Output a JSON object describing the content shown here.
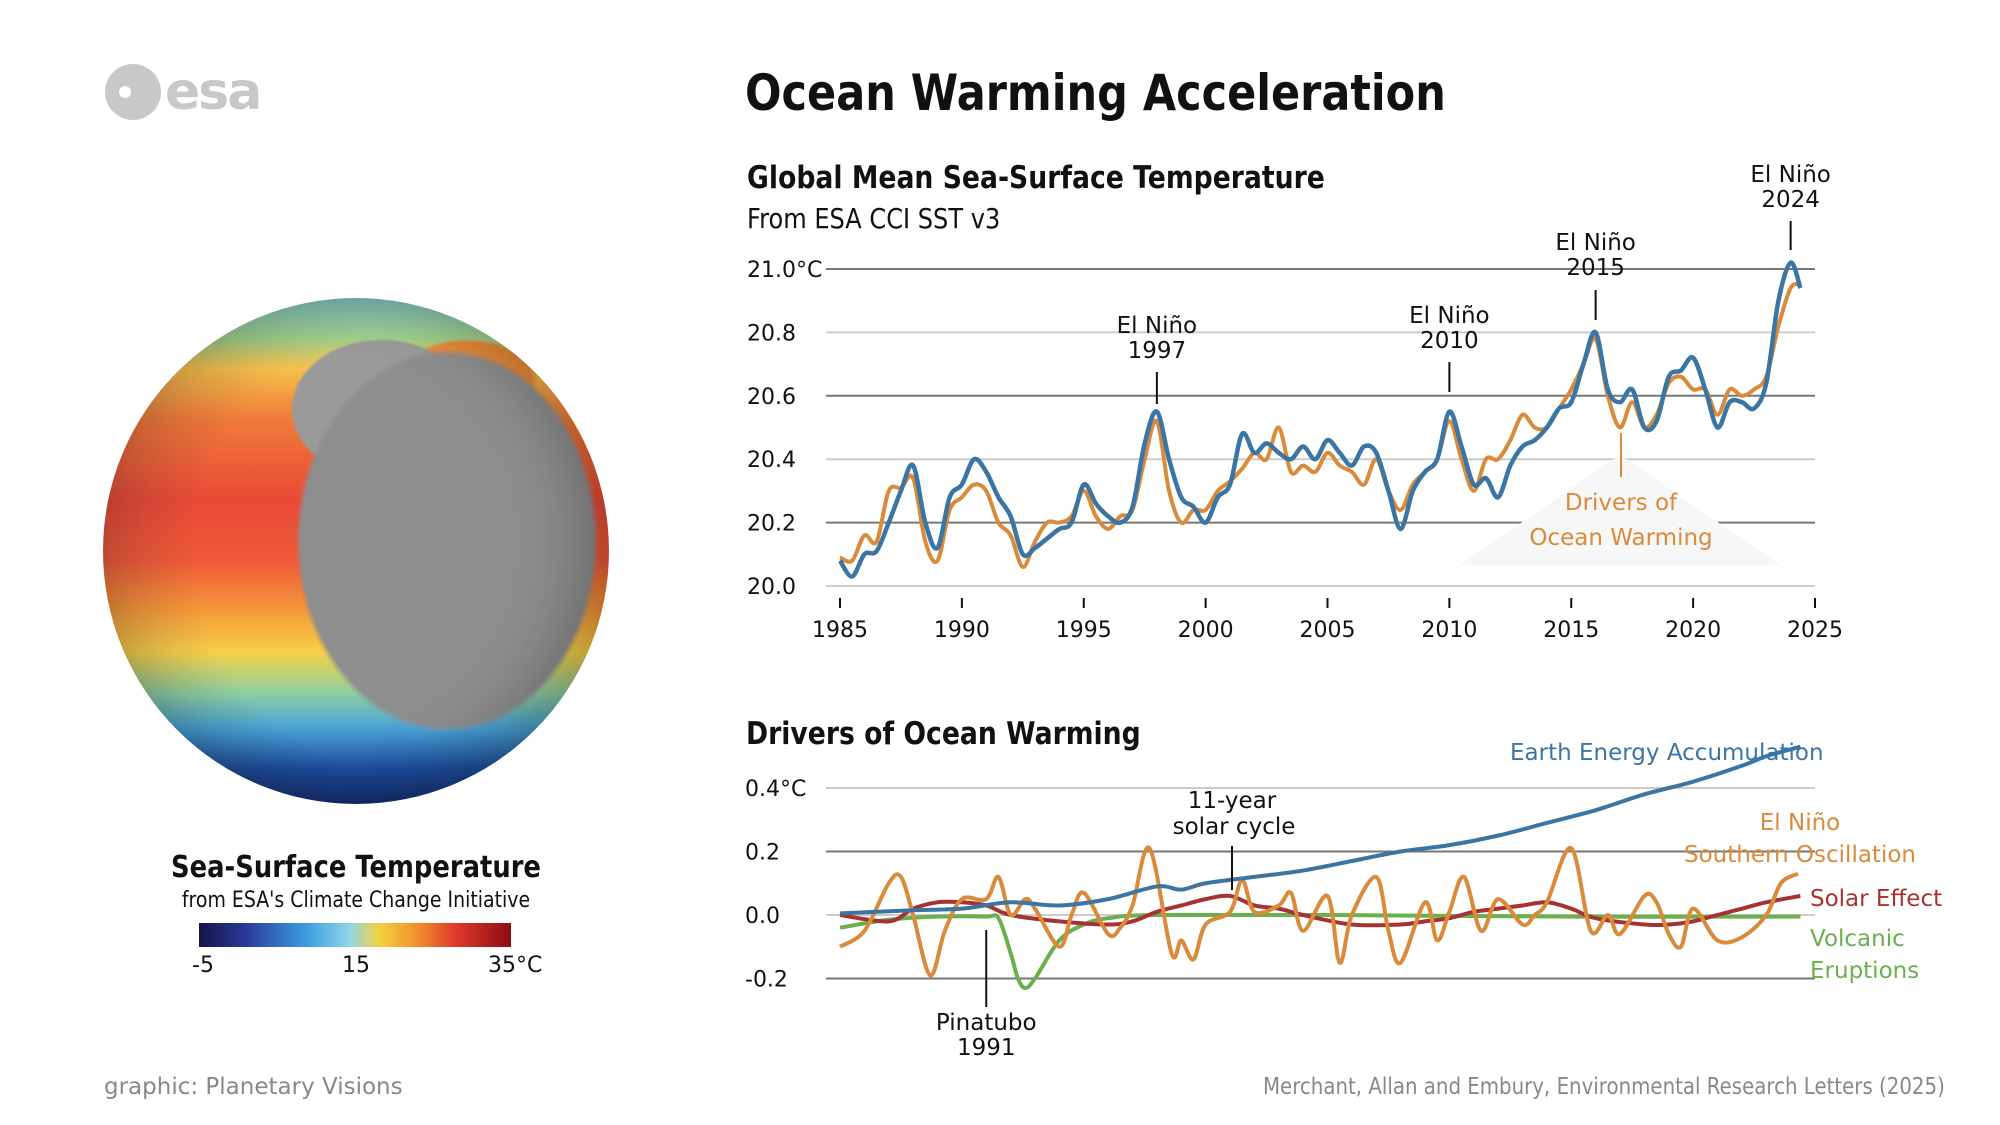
{
  "logo": {
    "text": "esa"
  },
  "title": "Ocean Warming Acceleration",
  "left_panel": {
    "legend_title": "Sea-Surface Temperature",
    "legend_subtitle": "from ESA's Climate Change Initiative",
    "colorbar": {
      "min_label": "-5",
      "mid_label": "15",
      "max_label": "35°C",
      "colors": [
        "#141448",
        "#3fa0e0",
        "#f5d040",
        "#e03a2c",
        "#8c0c12"
      ]
    }
  },
  "footer": {
    "left": "graphic: Planetary Visions",
    "right": "Merchant, Allan and Embury, Environmental Research Letters (2025)"
  },
  "chart_data": [
    {
      "type": "line",
      "title": "Global Mean Sea-Surface Temperature",
      "subtitle": "From ESA CCI SST v3",
      "xlim": [
        1985,
        2025
      ],
      "ylim": [
        20.0,
        21.0
      ],
      "xticks": [
        "1985",
        "1990",
        "1995",
        "2000",
        "2005",
        "2010",
        "2015",
        "2020",
        "2025"
      ],
      "yticks": [
        "20.0",
        "20.2",
        "20.4",
        "20.6",
        "20.8",
        "21.0°C"
      ],
      "grid": true,
      "annotations": [
        {
          "year": 1998,
          "line1": "El Niño",
          "line2": "1997"
        },
        {
          "year": 2010,
          "line1": "El Niño",
          "line2": "2010"
        },
        {
          "year": 2016,
          "line1": "El Niño",
          "line2": "2015"
        },
        {
          "year": 2024,
          "line1": "El Niño",
          "line2": "2024"
        }
      ],
      "drivers_label": {
        "line1": "Drivers of",
        "line2": "Ocean Warming"
      },
      "series": [
        {
          "color": "#3b75a3",
          "x": [
            1985,
            1985.5,
            1986,
            1986.5,
            1987,
            1987.5,
            1988,
            1988.5,
            1989,
            1989.5,
            1990,
            1990.5,
            1991,
            1991.5,
            1992,
            1992.5,
            1993,
            1993.5,
            1994,
            1994.5,
            1995,
            1995.5,
            1996,
            1996.5,
            1997,
            1997.5,
            1998,
            1998.5,
            1999,
            1999.5,
            2000,
            2000.5,
            2001,
            2001.5,
            2002,
            2002.5,
            2003,
            2003.5,
            2004,
            2004.5,
            2005,
            2005.5,
            2006,
            2006.5,
            2007,
            2007.5,
            2008,
            2008.5,
            2009,
            2009.5,
            2010,
            2010.5,
            2011,
            2011.5,
            2012,
            2012.5,
            2013,
            2013.5,
            2014,
            2014.5,
            2015,
            2015.5,
            2016,
            2016.5,
            2017,
            2017.5,
            2018,
            2018.5,
            2019,
            2019.5,
            2020,
            2020.5,
            2021,
            2021.5,
            2022,
            2022.5,
            2023,
            2023.5,
            2024,
            2024.4
          ],
          "y": [
            20.08,
            20.03,
            20.1,
            20.11,
            20.2,
            20.3,
            20.38,
            20.2,
            20.12,
            20.28,
            20.32,
            20.4,
            20.36,
            20.28,
            20.22,
            20.1,
            20.12,
            20.15,
            20.18,
            20.2,
            20.32,
            20.26,
            20.22,
            20.2,
            20.25,
            20.45,
            20.55,
            20.4,
            20.28,
            20.25,
            20.2,
            20.28,
            20.32,
            20.48,
            20.42,
            20.45,
            20.42,
            20.4,
            20.44,
            20.4,
            20.46,
            20.42,
            20.38,
            20.44,
            20.42,
            20.3,
            20.18,
            20.3,
            20.36,
            20.4,
            20.55,
            20.44,
            20.32,
            20.34,
            20.28,
            20.38,
            20.44,
            20.46,
            20.5,
            20.56,
            20.58,
            20.7,
            20.8,
            20.62,
            20.58,
            20.62,
            20.5,
            20.52,
            20.66,
            20.68,
            20.72,
            20.62,
            20.5,
            20.58,
            20.58,
            20.56,
            20.64,
            20.9,
            21.02,
            20.94
          ]
        },
        {
          "color": "#d98a3a",
          "x": [
            1985,
            1985.5,
            1986,
            1986.5,
            1987,
            1987.5,
            1988,
            1988.5,
            1989,
            1989.5,
            1990,
            1990.5,
            1991,
            1991.5,
            1992,
            1992.5,
            1993,
            1993.5,
            1994,
            1994.5,
            1995,
            1995.5,
            1996,
            1996.5,
            1997,
            1997.5,
            1998,
            1998.5,
            1999,
            1999.5,
            2000,
            2000.5,
            2001,
            2001.5,
            2002,
            2002.5,
            2003,
            2003.5,
            2004,
            2004.5,
            2005,
            2005.5,
            2006,
            2006.5,
            2007,
            2007.5,
            2008,
            2008.5,
            2009,
            2009.5,
            2010,
            2010.5,
            2011,
            2011.5,
            2012,
            2012.5,
            2013,
            2013.5,
            2014,
            2014.5,
            2015,
            2015.5,
            2016,
            2016.5,
            2017,
            2017.5,
            2018,
            2018.5,
            2019,
            2019.5,
            2020,
            2020.5,
            2021,
            2021.5,
            2022,
            2022.5,
            2023,
            2023.5,
            2024,
            2024.4
          ],
          "y": [
            20.09,
            20.08,
            20.16,
            20.14,
            20.3,
            20.31,
            20.34,
            20.14,
            20.08,
            20.24,
            20.28,
            20.32,
            20.3,
            20.2,
            20.16,
            20.06,
            20.14,
            20.2,
            20.2,
            20.22,
            20.3,
            20.22,
            20.18,
            20.22,
            20.24,
            20.4,
            20.52,
            20.3,
            20.2,
            20.24,
            20.24,
            20.3,
            20.33,
            20.37,
            20.42,
            20.4,
            20.5,
            20.36,
            20.38,
            20.36,
            20.42,
            20.38,
            20.36,
            20.32,
            20.4,
            20.3,
            20.24,
            20.32,
            20.36,
            20.4,
            20.52,
            20.4,
            20.3,
            20.4,
            20.4,
            20.46,
            20.54,
            20.5,
            20.5,
            20.56,
            20.62,
            20.7,
            20.78,
            20.6,
            20.5,
            20.58,
            20.5,
            20.54,
            20.64,
            20.66,
            20.62,
            20.62,
            20.54,
            20.62,
            20.6,
            20.62,
            20.66,
            20.82,
            20.94,
            20.95
          ]
        }
      ]
    },
    {
      "type": "line",
      "title": "Drivers of Ocean Warming",
      "xlim": [
        1985,
        2025
      ],
      "ylim": [
        -0.25,
        0.55
      ],
      "yticks": [
        "-0.2",
        "0.0",
        "0.2",
        "0.4°C"
      ],
      "grid": true,
      "annotations": [
        {
          "year": 1999,
          "line1": "11-year",
          "line2": "solar cycle"
        },
        {
          "year": 1991,
          "line1": "Pinatubo",
          "line2": "1991"
        }
      ],
      "series": [
        {
          "name": "Earth Energy Accumulation",
          "color": "#3b75a3",
          "x": [
            1985,
            1988,
            1990,
            1992,
            1994,
            1996,
            1998,
            1999,
            2000,
            2002,
            2004,
            2006,
            2008,
            2010,
            2012,
            2014,
            2016,
            2018,
            2020,
            2022,
            2023,
            2024.4
          ],
          "y": [
            0.005,
            0.015,
            0.02,
            0.04,
            0.03,
            0.05,
            0.09,
            0.08,
            0.1,
            0.12,
            0.14,
            0.17,
            0.2,
            0.22,
            0.25,
            0.29,
            0.33,
            0.38,
            0.42,
            0.47,
            0.5,
            0.53
          ]
        },
        {
          "name": "El Niño Southern Oscillation",
          "color": "#d98a3a",
          "x": [
            1985,
            1986,
            1987,
            1987.5,
            1988,
            1988.7,
            1989.3,
            1990,
            1991,
            1991.5,
            1992,
            1992.6,
            1993,
            1994,
            1994.5,
            1995,
            1996,
            1996.5,
            1997,
            1997.7,
            1998.6,
            1999,
            1999.5,
            2000,
            2001,
            2001.5,
            2002,
            2003,
            2003.5,
            2004,
            2005,
            2005.5,
            2006,
            2007,
            2007.5,
            2008,
            2009,
            2009.5,
            2010,
            2010.6,
            2011.3,
            2012,
            2013,
            2013.5,
            2014,
            2015,
            2015.8,
            2016.5,
            2017,
            2018,
            2018.5,
            2019,
            2019.5,
            2020,
            2021,
            2022,
            2023,
            2023.6,
            2024.3
          ],
          "y": [
            -0.1,
            -0.05,
            0.1,
            0.12,
            0.0,
            -0.19,
            -0.05,
            0.05,
            0.05,
            0.12,
            0.0,
            0.05,
            0.02,
            -0.1,
            0.0,
            0.07,
            -0.06,
            -0.04,
            0.03,
            0.21,
            -0.12,
            -0.08,
            -0.14,
            -0.03,
            0.01,
            0.11,
            0.01,
            0.03,
            0.07,
            -0.05,
            0.06,
            -0.15,
            0.0,
            0.12,
            -0.05,
            -0.15,
            0.04,
            -0.08,
            0.01,
            0.12,
            -0.05,
            0.05,
            -0.03,
            0.0,
            0.04,
            0.21,
            -0.05,
            0.0,
            -0.06,
            0.06,
            0.04,
            -0.06,
            -0.1,
            0.02,
            -0.08,
            -0.07,
            0.0,
            0.1,
            0.13
          ]
        },
        {
          "name": "Solar Effect",
          "color": "#a83232",
          "x": [
            1985,
            1987,
            1988,
            1989,
            1990,
            1991,
            1992,
            1994,
            1996,
            1997,
            1998,
            1999,
            2000,
            2001,
            2002,
            2003,
            2004,
            2006,
            2008,
            2009,
            2010,
            2011,
            2012,
            2013,
            2014,
            2015,
            2016,
            2018,
            2019,
            2020,
            2021,
            2022,
            2023,
            2024.4
          ],
          "y": [
            0.0,
            -0.02,
            0.02,
            0.04,
            0.04,
            0.03,
            0.0,
            -0.02,
            -0.03,
            -0.02,
            0.01,
            0.03,
            0.05,
            0.06,
            0.03,
            0.02,
            0.0,
            -0.03,
            -0.03,
            -0.02,
            -0.01,
            0.01,
            0.02,
            0.03,
            0.04,
            0.02,
            -0.01,
            -0.03,
            -0.03,
            -0.02,
            0.0,
            0.02,
            0.04,
            0.06
          ]
        },
        {
          "name": "Volcanic Eruptions",
          "color": "#6ab04c",
          "x": [
            1985,
            1987,
            1989,
            1991,
            1991.5,
            1992,
            1992.3,
            1992.6,
            1993,
            1994,
            1995,
            1996,
            1998,
            2005,
            2015,
            2024.4
          ],
          "y": [
            -0.04,
            -0.015,
            -0.005,
            -0.005,
            -0.01,
            -0.12,
            -0.2,
            -0.23,
            -0.2,
            -0.08,
            -0.03,
            -0.01,
            0.0,
            0.0,
            -0.005,
            -0.005
          ]
        }
      ]
    }
  ]
}
